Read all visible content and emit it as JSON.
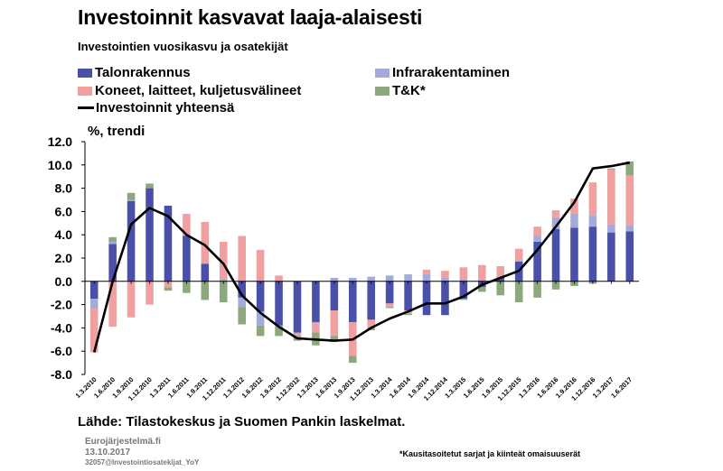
{
  "title": "Investoinnit kasvavat laaja-alaisesti",
  "subtitle": "Investointien vuosikasvu ja osatekijät",
  "source": "Lähde: Tilastokeskus ja Suomen Pankin laskelmat.",
  "footer": {
    "org": "Eurojärjestelmä.fi",
    "date": "13.10.2017",
    "file": "32057@Investointiosatekijat_YoY"
  },
  "footnote": "*Kausitasoitetut sarjat ja kiinteät omaisuuserät",
  "colors": {
    "talonrakennus": "#4a50a8",
    "koneet": "#f0a0a0",
    "infra": "#a4aadb",
    "tk": "#8ca87c",
    "total": "#000000"
  },
  "chart_data": {
    "type": "bar",
    "stacked": true,
    "ylabel": "%, trendi",
    "ylim": [
      -8,
      12
    ],
    "yticks": [
      "12.0",
      "10.0",
      "8.0",
      "6.0",
      "4.0",
      "2.0",
      "0.0",
      "-2.0",
      "-4.0",
      "-6.0",
      "-8.0"
    ],
    "grid": false,
    "legend_position": "top",
    "categories": [
      "1.3.2010",
      "1.6.2010",
      "1.9.2010",
      "1.12.2010",
      "1.3.2011",
      "1.6.2011",
      "1.9.2011",
      "1.12.2011",
      "1.3.2012",
      "1.6.2012",
      "1.9.2012",
      "1.12.2012",
      "1.3.2013",
      "1.6.2013",
      "1.9.2013",
      "1.12.2013",
      "1.3.2014",
      "1.6.2014",
      "1.9.2014",
      "1.12.2014",
      "1.3.2015",
      "1.6.2015",
      "1.9.2015",
      "1.12.2015",
      "1.3.2016",
      "1.6.2016",
      "1.9.2016",
      "1.12.2016",
      "1.3.2017",
      "1.6.2017"
    ],
    "xtick_labels": [
      "1.3.2010",
      "1.6.2010",
      "1.9.2010",
      "1.12.2010",
      "1.3.2011",
      "1.6.2011",
      "1.9.2011",
      "1.12.2011",
      "1.3.2012",
      "1.6.2012",
      "1.9.2012",
      "1.12.2012",
      "1.3.2013",
      "1.6.2013",
      "1.9.2013",
      "1.12.2013",
      "1.3.2014",
      "1.6.2014",
      "1.9.2014",
      "1.12.2014",
      "1.3.2015",
      "1.6.2015",
      "1.9.2015",
      "1.12.2015",
      "1.3.2016",
      "1.6.2016",
      "1.9.2016",
      "1.12.2016",
      "1.3.2017",
      "1.6.2017"
    ],
    "series": [
      {
        "name": "Talonrakennus",
        "key": "talonrakennus",
        "kind": "bar",
        "values": [
          -1.5,
          3.2,
          6.9,
          8.0,
          6.5,
          3.9,
          1.5,
          0.0,
          -1.4,
          -2.6,
          -3.8,
          -4.4,
          -3.5,
          -2.5,
          -3.5,
          -3.3,
          -1.9,
          -2.5,
          -2.9,
          -2.9,
          -1.5,
          -0.5,
          0.3,
          1.7,
          3.4,
          4.5,
          4.6,
          4.7,
          4.2,
          4.3
        ]
      },
      {
        "name": "Infrarakentaminen",
        "key": "infra",
        "kind": "bar",
        "values": [
          -0.8,
          0.2,
          0.1,
          0.0,
          0.0,
          0.1,
          0.1,
          0.2,
          -0.8,
          -1.2,
          -0.1,
          -0.1,
          -0.1,
          0.3,
          0.3,
          0.4,
          0.5,
          0.6,
          0.6,
          0.3,
          0.2,
          0.1,
          0.1,
          0.1,
          0.5,
          1.0,
          1.2,
          1.0,
          0.7,
          0.5
        ]
      },
      {
        "name": "Koneet, laitteet, kuljetusvälineet",
        "key": "koneet",
        "kind": "bar",
        "values": [
          -3.8,
          -3.9,
          -3.1,
          -2.0,
          -0.5,
          1.8,
          3.5,
          3.2,
          3.9,
          2.7,
          0.5,
          -0.2,
          -0.8,
          -2.2,
          -2.9,
          -0.7,
          -0.3,
          -0.3,
          0.4,
          0.6,
          1.0,
          1.3,
          0.9,
          1.0,
          0.8,
          0.6,
          1.3,
          2.8,
          4.7,
          4.3
        ]
      },
      {
        "name": "T&K*",
        "key": "tk",
        "kind": "bar",
        "values": [
          0.0,
          0.4,
          0.6,
          0.4,
          -0.3,
          -1.0,
          -1.6,
          -1.8,
          -1.5,
          -0.9,
          -0.8,
          -0.4,
          -1.1,
          -0.5,
          -0.6,
          -0.2,
          -0.1,
          -0.1,
          0.0,
          0.0,
          -0.1,
          -0.4,
          -1.2,
          -1.8,
          -1.4,
          -0.7,
          -0.4,
          -0.2,
          0.1,
          1.2
        ]
      },
      {
        "name": "Investoinnit yhteensä",
        "key": "total",
        "kind": "line",
        "values": [
          -6.1,
          0.0,
          4.9,
          6.3,
          5.6,
          4.0,
          3.1,
          1.5,
          -1.2,
          -2.7,
          -3.9,
          -4.9,
          -5.0,
          -5.1,
          -5.0,
          -4.0,
          -3.2,
          -2.6,
          -1.9,
          -1.9,
          -1.3,
          -0.3,
          0.3,
          0.9,
          2.7,
          4.7,
          6.8,
          9.7,
          9.9,
          10.2
        ]
      }
    ]
  }
}
